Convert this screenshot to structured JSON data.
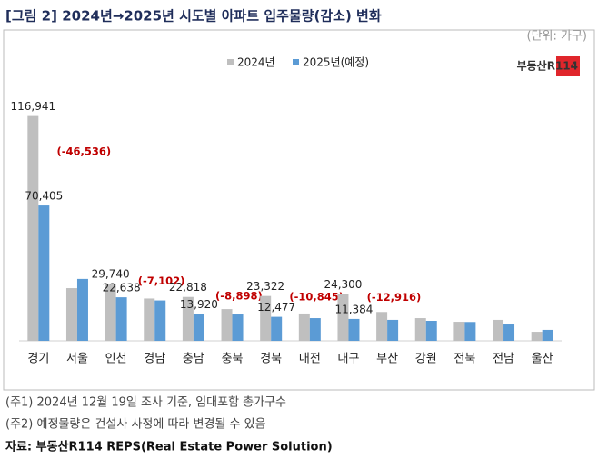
{
  "chart_data": {
    "type": "bar",
    "title": "[그림 2] 2024년→2025년 시도별 아파트 입주물량(감소) 변화",
    "unit": "(단위: 가구)",
    "logo": "부동산R114",
    "categories": [
      "경기",
      "서울",
      "인천",
      "경남",
      "충남",
      "충북",
      "경북",
      "대전",
      "대구",
      "부산",
      "강원",
      "전북",
      "전남",
      "울산"
    ],
    "series": [
      {
        "name": "2024년",
        "color": "#bfbfbf",
        "values": [
          116941,
          27400,
          29740,
          22000,
          22818,
          16500,
          23322,
          14200,
          24300,
          15000,
          11800,
          9900,
          10900,
          4700
        ],
        "value_labels": [
          "116,941",
          null,
          "29,740",
          null,
          "22,818",
          null,
          "23,322",
          null,
          "24,300",
          null,
          null,
          null,
          null,
          null
        ]
      },
      {
        "name": "2025년(예정)",
        "color": "#5b9bd5",
        "values": [
          70405,
          32200,
          22638,
          21000,
          13920,
          13700,
          12477,
          11800,
          11384,
          10900,
          10400,
          9800,
          8500,
          5700
        ],
        "value_labels": [
          "70,405",
          null,
          "22,638",
          null,
          "13,920",
          null,
          "12,477",
          null,
          "11,384",
          null,
          null,
          null,
          null,
          null
        ]
      }
    ],
    "changes": [
      -46536,
      null,
      -7102,
      null,
      -8898,
      null,
      -10845,
      null,
      -12916,
      null,
      null,
      null,
      null,
      null
    ],
    "change_labels": [
      "(-46,536)",
      null,
      "(-7,102)",
      null,
      "(-8,898)",
      null,
      "(-10,845)",
      null,
      "(-12,916)",
      null,
      null,
      null,
      null,
      null
    ],
    "ylim": [
      0,
      130000
    ]
  },
  "notes": [
    "(주1) 2024년 12월 19일 조사 기준, 임대포함 총가구수",
    "(주2) 예정물량은 건설사 사정에 따라 변경될 수 있음"
  ],
  "source": "자료: 부동산R114 REPS(Real Estate Power Solution)"
}
